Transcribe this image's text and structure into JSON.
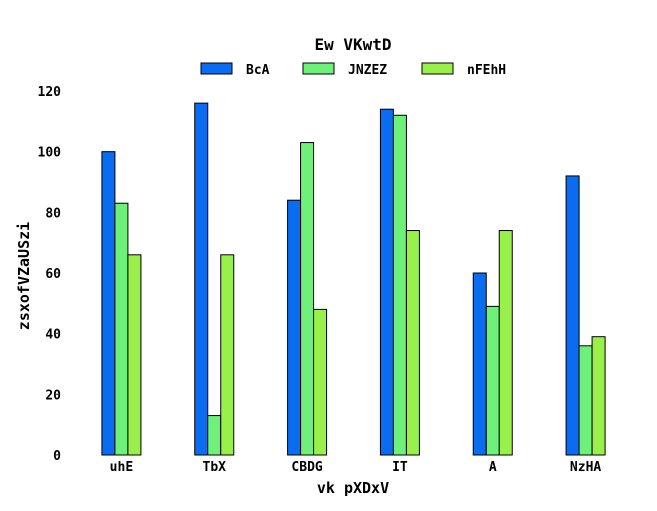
{
  "chart_data": {
    "type": "bar",
    "title": "Ew VKwtD",
    "xlabel": "vk pXDxV",
    "ylabel": "zsxofVZaUSzi",
    "categories": [
      "uhE",
      "TbX",
      "CBDG",
      "IT",
      "A",
      "NzHA"
    ],
    "ylim": [
      0,
      120
    ],
    "yticks": [
      0,
      20,
      40,
      60,
      80,
      100,
      120
    ],
    "grid": false,
    "legend_position": "top-center",
    "series": [
      {
        "name": "BcA",
        "color": "#0a6cf0",
        "values": [
          100,
          116,
          84,
          114,
          60,
          92
        ]
      },
      {
        "name": "JNZEZ",
        "color": "#6ef07a",
        "values": [
          83,
          13,
          103,
          112,
          49,
          36
        ]
      },
      {
        "name": "nFEhH",
        "color": "#9af04a",
        "values": [
          66,
          66,
          48,
          74,
          74,
          39
        ]
      }
    ]
  }
}
